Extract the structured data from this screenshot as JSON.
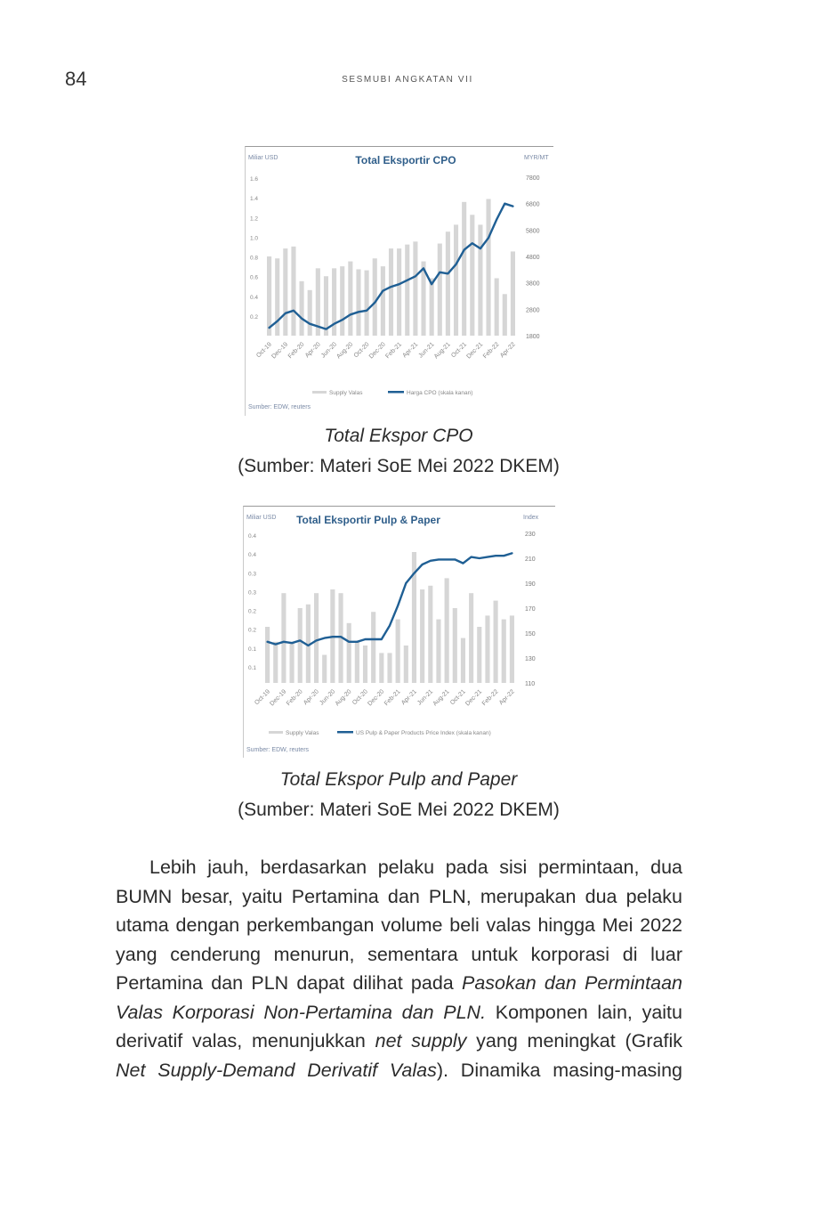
{
  "header": {
    "page_number": "84",
    "running_head": "SESMUBI ANGKATAN VII"
  },
  "chart_data": [
    {
      "type": "bar",
      "title": "Total Eksportir CPO",
      "ylabel_left": "Miliar USD",
      "ylabel_right": "MYR/MT",
      "ylim_left": [
        0,
        1.6
      ],
      "ylim_right": [
        1800,
        7800
      ],
      "yticks_left": [
        "1.6",
        "1.4",
        "1.2",
        "1.0",
        "0.8",
        "0.6",
        "0.4",
        "0.2"
      ],
      "yticks_right": [
        "7800",
        "6800",
        "5800",
        "4800",
        "3800",
        "2800",
        "1800"
      ],
      "xtick_labels": [
        "Oct-19",
        "Dec-19",
        "Feb-20",
        "Apr-20",
        "Jun-20",
        "Aug-20",
        "Oct-20",
        "Dec-20",
        "Feb-21",
        "Apr-21",
        "Jun-21",
        "Aug-21",
        "Oct-21",
        "Dec-21",
        "Feb-22",
        "Apr-22"
      ],
      "categories": [
        "Oct-19",
        "Nov-19",
        "Dec-19",
        "Jan-20",
        "Feb-20",
        "Mar-20",
        "Apr-20",
        "May-20",
        "Jun-20",
        "Jul-20",
        "Aug-20",
        "Sep-20",
        "Oct-20",
        "Nov-20",
        "Dec-20",
        "Jan-21",
        "Feb-21",
        "Mar-21",
        "Apr-21",
        "May-21",
        "Jun-21",
        "Jul-21",
        "Aug-21",
        "Sep-21",
        "Oct-21",
        "Nov-21",
        "Dec-21",
        "Jan-22",
        "Feb-22",
        "Mar-22",
        "Apr-22"
      ],
      "series": [
        {
          "name": "Supply Valas",
          "kind": "bar",
          "axis": "left",
          "color": "#d6d6d6",
          "values": [
            0.8,
            0.78,
            0.88,
            0.9,
            0.55,
            0.46,
            0.68,
            0.6,
            0.68,
            0.7,
            0.75,
            0.67,
            0.66,
            0.78,
            0.7,
            0.88,
            0.88,
            0.92,
            0.95,
            0.75,
            0.58,
            0.93,
            1.05,
            1.12,
            1.35,
            1.22,
            1.12,
            1.38,
            0.58,
            0.42,
            0.85
          ]
        },
        {
          "name": "Harga CPO (skala kanan)",
          "kind": "line",
          "axis": "right",
          "color": "#1f5f94",
          "values": [
            2100,
            2350,
            2650,
            2750,
            2450,
            2250,
            2150,
            2050,
            2250,
            2400,
            2600,
            2700,
            2750,
            3050,
            3500,
            3650,
            3750,
            3900,
            4050,
            4350,
            3750,
            4200,
            4150,
            4500,
            5050,
            5300,
            5100,
            5500,
            6200,
            6800,
            6700
          ]
        }
      ],
      "legend": [
        "Supply Valas",
        "Harga CPO (skala kanan)"
      ],
      "source": "Sumber: EDW, reuters"
    },
    {
      "type": "bar",
      "title": "Total Eksportir Pulp & Paper",
      "ylabel_left": "Miliar USD",
      "ylabel_right": "Index",
      "ylim_left": [
        0,
        0.8
      ],
      "ylim_right": [
        110,
        230
      ],
      "yticks_left": [
        "0.4",
        "0.4",
        "0.3",
        "0.3",
        "0.2",
        "0.2",
        "0.1",
        "0.1"
      ],
      "yticks_right": [
        "230",
        "210",
        "190",
        "170",
        "150",
        "130",
        "110"
      ],
      "xtick_labels": [
        "Oct-19",
        "Dec-19",
        "Feb-20",
        "Apr-20",
        "Jun-20",
        "Aug-20",
        "Oct-20",
        "Dec-20",
        "Feb-21",
        "Apr-21",
        "Jun-21",
        "Aug-21",
        "Oct-21",
        "Dec-21",
        "Feb-22",
        "Apr-22"
      ],
      "categories": [
        "Oct-19",
        "Nov-19",
        "Dec-19",
        "Jan-20",
        "Feb-20",
        "Mar-20",
        "Apr-20",
        "May-20",
        "Jun-20",
        "Jul-20",
        "Aug-20",
        "Sep-20",
        "Oct-20",
        "Nov-20",
        "Dec-20",
        "Jan-21",
        "Feb-21",
        "Mar-21",
        "Apr-21",
        "May-21",
        "Jun-21",
        "Jul-21",
        "Aug-21",
        "Sep-21",
        "Oct-21",
        "Nov-21",
        "Dec-21",
        "Jan-22",
        "Feb-22",
        "Mar-22",
        "Apr-22"
      ],
      "series": [
        {
          "name": "Supply Valas",
          "kind": "bar",
          "axis": "left",
          "color": "#d6d6d6",
          "values": [
            0.3,
            0.22,
            0.48,
            0.22,
            0.4,
            0.42,
            0.48,
            0.15,
            0.5,
            0.48,
            0.32,
            0.22,
            0.2,
            0.38,
            0.16,
            0.16,
            0.34,
            0.2,
            0.7,
            0.5,
            0.52,
            0.34,
            0.56,
            0.4,
            0.24,
            0.48,
            0.3,
            0.36,
            0.44,
            0.34,
            0.36
          ]
        },
        {
          "name": "US Pulp & Paper Products Price Index (skala kanan)",
          "kind": "line",
          "axis": "right",
          "color": "#1f5f94",
          "values": [
            143,
            141,
            143,
            142,
            144,
            140,
            144,
            146,
            147,
            147,
            143,
            143,
            145,
            145,
            145,
            156,
            172,
            190,
            198,
            205,
            208,
            209,
            209,
            209,
            206,
            211,
            210,
            211,
            212,
            212,
            214
          ]
        }
      ],
      "legend": [
        "Supply Valas",
        "US Pulp & Paper Products Price Index (skala kanan)"
      ],
      "source": "Sumber: EDW, reuters"
    }
  ],
  "figures": [
    {
      "caption_title": "Total Ekspor CPO",
      "caption_source": "(Sumber: Materi SoE Mei 2022 DKEM)"
    },
    {
      "caption_title": "Total Ekspor Pulp and Paper",
      "caption_source": "(Sumber: Materi SoE Mei 2022 DKEM)"
    }
  ],
  "paragraph": {
    "l1": "Lebih jauh, berdasarkan pelaku pada sisi permintaan, dua",
    "l2": "BUMN besar, yaitu Pertamina dan PLN, merupakan dua pelaku",
    "l3": "utama dengan perkembangan volume beli valas hingga Mei 2022",
    "l4": "yang cenderung menurun, sementara untuk korporasi di luar",
    "l5_a": "Pertamina dan PLN dapat dilihat pada ",
    "l5_b": "Pasokan dan Permintaan",
    "l6_a": "Valas Korporasi Non-Pertamina dan PLN.",
    "l6_b": " Komponen lain, yaitu",
    "l7_a": "derivatif valas, menunjukkan ",
    "l7_b": "net supply",
    "l7_c": " yang meningkat (Grafik",
    "l8_a": "Net Supply-Demand Derivatif Valas",
    "l8_b": "). Dinamika masing-masing"
  }
}
